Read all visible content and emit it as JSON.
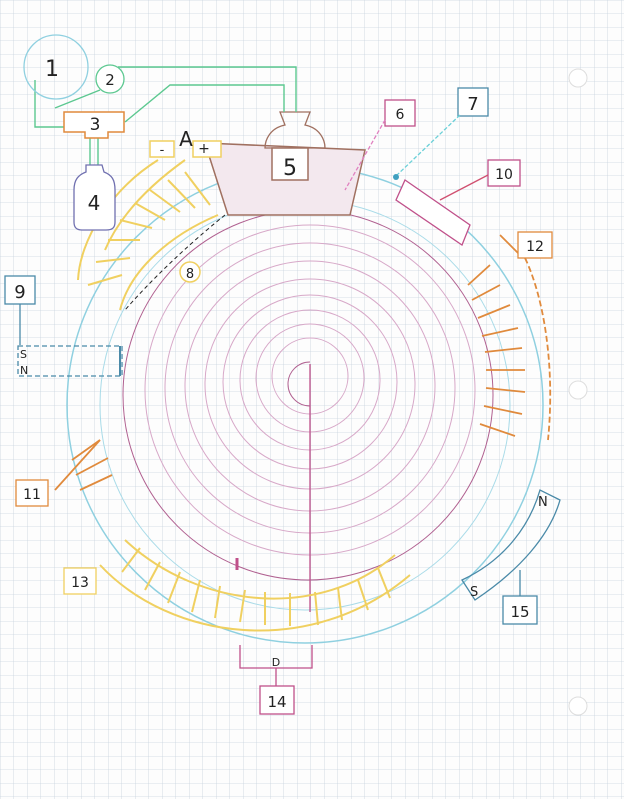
{
  "labels": {
    "n1": "1",
    "n2": "2",
    "n3": "3",
    "n4": "4",
    "n5": "5",
    "n6": "6",
    "n7": "7",
    "n8": "8",
    "n9": "9",
    "n10": "10",
    "n11": "11",
    "n12": "12",
    "n13": "13",
    "n14": "14",
    "n15": "15",
    "ammeter": "A",
    "minus": "-",
    "plus": "+",
    "magnet_left_s": "S",
    "magnet_left_n": "N",
    "magnet_right_s": "S",
    "magnet_right_n": "N",
    "slit": "D"
  },
  "colors": {
    "grid": "#c9d3de",
    "blue_circle": "#8fd0e0",
    "yellow": "#f0d060",
    "orange": "#e08a3c",
    "pink": "#c0508a",
    "green": "#5cc890",
    "brown": "#a07060",
    "teal": "#4a8aa8"
  }
}
